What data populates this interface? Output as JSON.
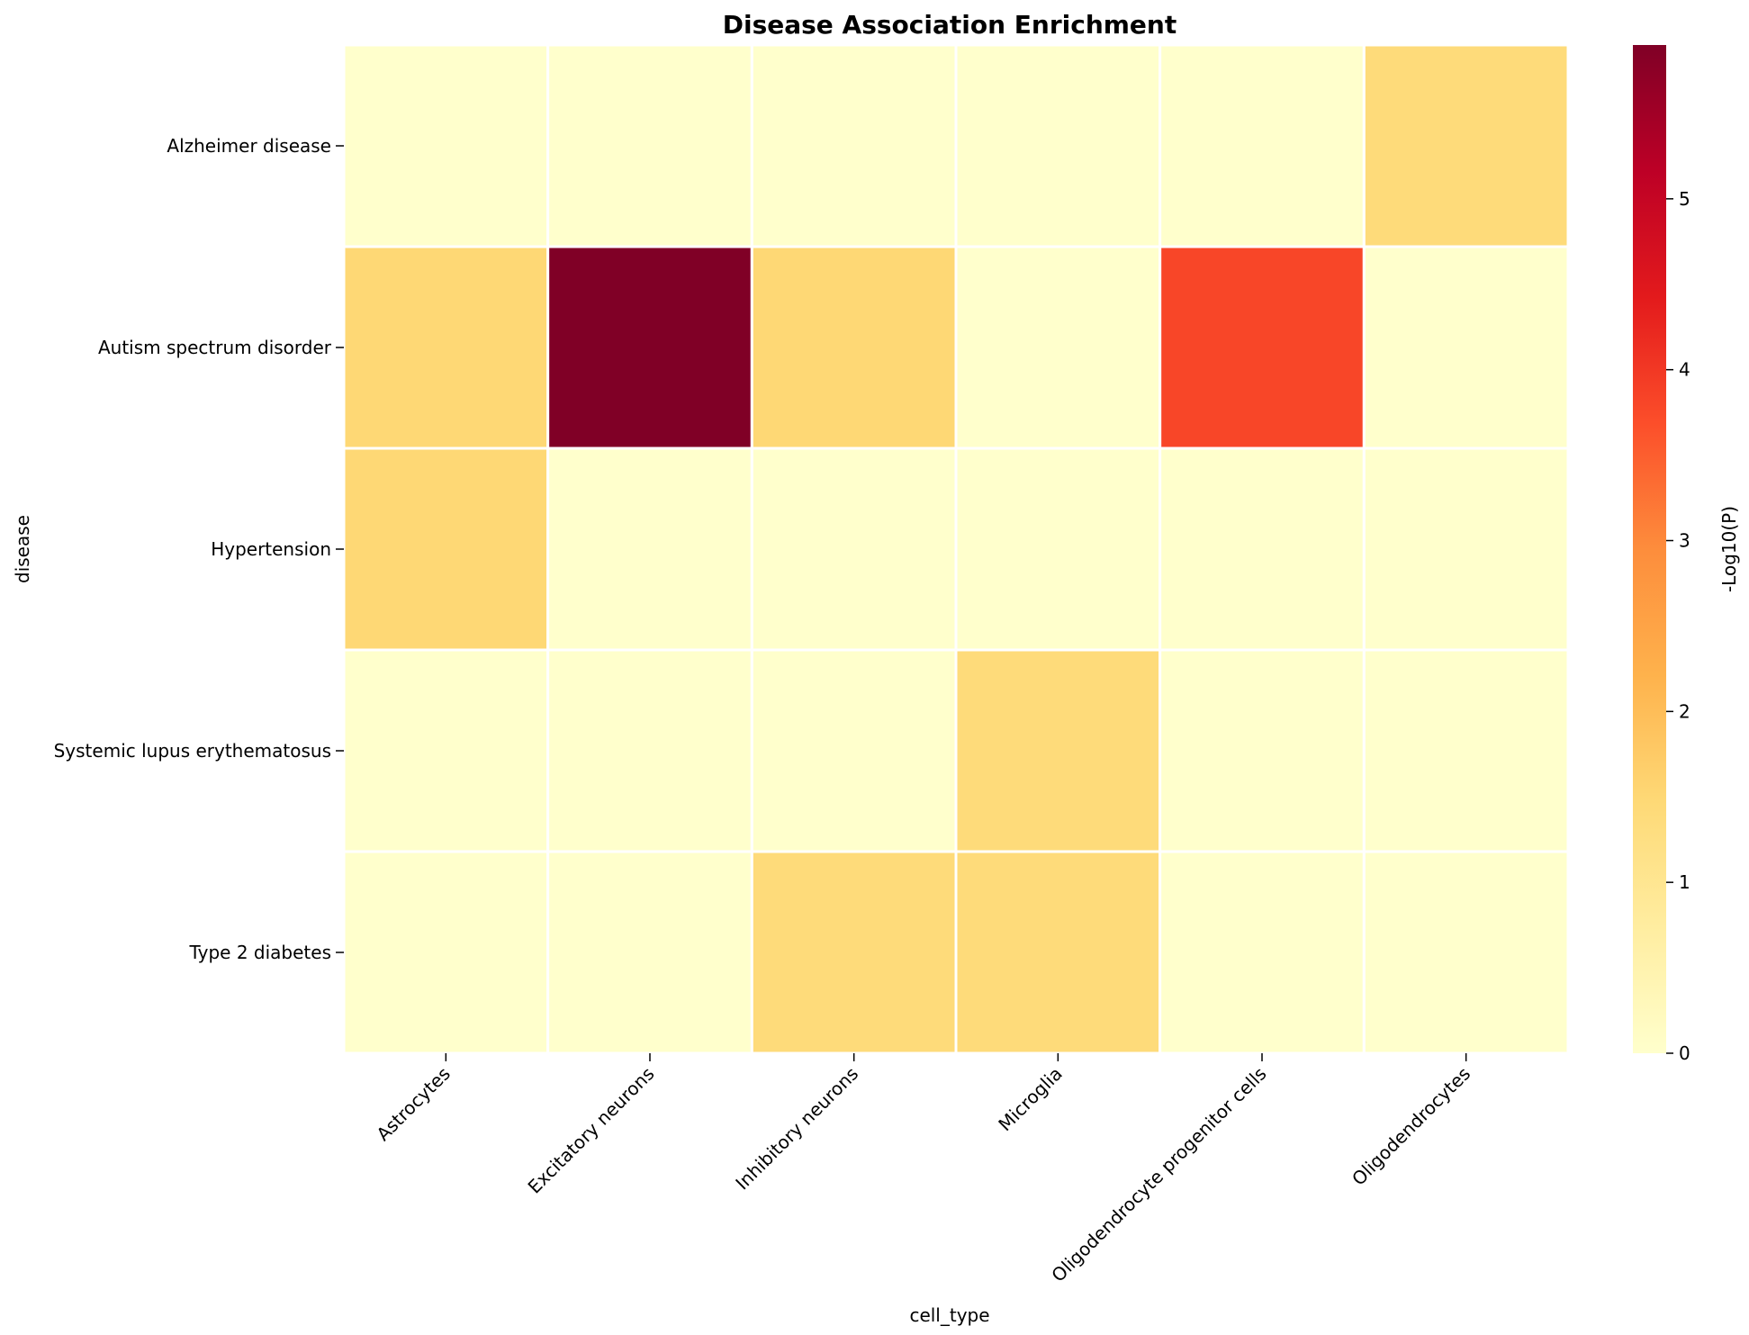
{
  "chart_data": {
    "type": "heatmap",
    "title": "Disease Association Enrichment",
    "xlabel": "cell_type",
    "ylabel": "disease",
    "colorbar_label": "-Log10(P)",
    "x_categories": [
      "Astrocytes",
      "Excitatory neurons",
      "Inhibitory neurons",
      "Microglia",
      "Oligodendrocyte progenitor cells",
      "Oligodendrocytes"
    ],
    "y_categories": [
      "Alzheimer disease",
      "Autism spectrum disorder",
      "Hypertension",
      "Systemic lupus erythematosus",
      "Type 2 diabetes"
    ],
    "values": [
      [
        0,
        0,
        0,
        0,
        0,
        1.4
      ],
      [
        1.5,
        5.9,
        1.5,
        0,
        3.8,
        0
      ],
      [
        1.5,
        0,
        0,
        0,
        0,
        0
      ],
      [
        0,
        0,
        0,
        1.4,
        0,
        0
      ],
      [
        0,
        0,
        1.4,
        1.4,
        0,
        0
      ]
    ],
    "colorbar_ticks": [
      0,
      1,
      2,
      3,
      4,
      5
    ],
    "vmin": 0,
    "vmax": 5.9,
    "colormap": "YlOrRd",
    "colormap_stops": [
      "#ffffcc",
      "#ffeda0",
      "#fed976",
      "#feb24c",
      "#fd8d3c",
      "#fc4e2a",
      "#e31a1c",
      "#bd0026",
      "#800026"
    ],
    "cell_border_color": "#ffffff",
    "grid": false
  }
}
